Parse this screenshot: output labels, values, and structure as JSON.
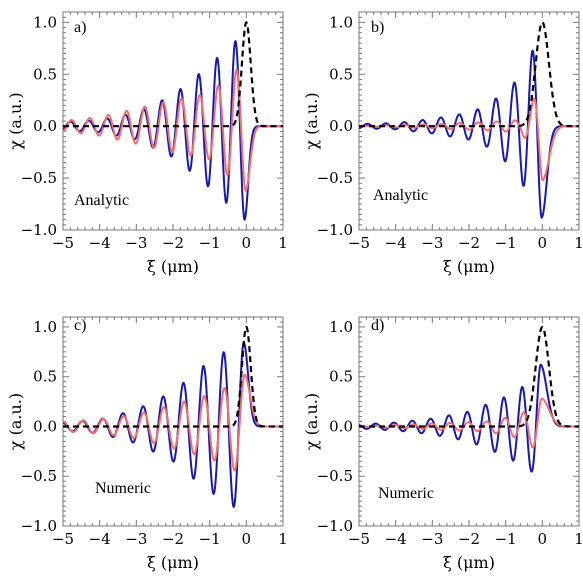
{
  "chart_data": [
    {
      "type": "line",
      "panel_label": "a)",
      "method": "Analytic",
      "xlabel": "ξ (μm)",
      "ylabel": "χ (a.u.)",
      "xlim": [
        -5,
        1
      ],
      "ylim": [
        -1,
        1.1
      ],
      "xticks": [
        "−5",
        "−4",
        "−3",
        "−2",
        "−1",
        "0",
        "1"
      ],
      "yticks": [
        "−1.0",
        "−0.5",
        "0.0",
        "0.5",
        "1.0"
      ],
      "grid": false,
      "series": [
        {
          "color": "#000000",
          "style": "dashed",
          "kind": "gaussian",
          "center": 0,
          "width": 0.12,
          "amp": 1.0
        },
        {
          "color": "#1a1aa8",
          "style": "solid",
          "kind": "oscillation",
          "wavelength": 0.5,
          "x0": -0.05,
          "amps": [
            [
              -5,
              0.04
            ],
            [
              -4,
              0.06
            ],
            [
              -3,
              0.13
            ],
            [
              -2,
              0.3
            ],
            [
              -1.3,
              0.5
            ],
            [
              -0.6,
              0.72
            ],
            [
              -0.05,
              0.9
            ]
          ],
          "tail": 0.1
        },
        {
          "color": "#f07070",
          "style": "solid",
          "kind": "oscillation",
          "wavelength": 0.5,
          "x0": -0.02,
          "amps": [
            [
              -5,
              0.05
            ],
            [
              -4,
              0.09
            ],
            [
              -3,
              0.17
            ],
            [
              -2,
              0.25
            ],
            [
              -1,
              0.32
            ],
            [
              -0.02,
              0.62
            ]
          ],
          "tail": 0.12
        }
      ]
    },
    {
      "type": "line",
      "panel_label": "b)",
      "method": "Analytic",
      "xlabel": "ξ (μm)",
      "ylabel": "χ (a.u.)",
      "xlim": [
        -5,
        1
      ],
      "ylim": [
        -1,
        1.1
      ],
      "xticks": [
        "−5",
        "−4",
        "−3",
        "−2",
        "−1",
        "0",
        "1"
      ],
      "yticks": [
        "−1.0",
        "−0.5",
        "0.0",
        "0.5",
        "1.0"
      ],
      "grid": false,
      "series": [
        {
          "color": "#000000",
          "style": "dashed",
          "kind": "gaussian",
          "center": 0,
          "width": 0.18,
          "amp": 1.0
        },
        {
          "color": "#1a1aa8",
          "style": "solid",
          "kind": "oscillation",
          "wavelength": 0.5,
          "x0": -0.02,
          "amps": [
            [
              -5,
              0.02
            ],
            [
              -4,
              0.03
            ],
            [
              -3,
              0.07
            ],
            [
              -2,
              0.13
            ],
            [
              -1.5,
              0.2
            ],
            [
              -0.8,
              0.4
            ],
            [
              -0.02,
              0.88
            ]
          ],
          "tail": 0.14
        },
        {
          "color": "#f07070",
          "style": "solid",
          "kind": "oscillation",
          "wavelength": 0.5,
          "x0": 0.0,
          "amps": [
            [
              -5,
              0.0
            ],
            [
              -3,
              0.02
            ],
            [
              -1.5,
              0.04
            ],
            [
              -0.6,
              0.06
            ],
            [
              -0.3,
              0.2
            ],
            [
              0.0,
              0.52
            ]
          ],
          "tail": 0.18
        }
      ]
    },
    {
      "type": "line",
      "panel_label": "c)",
      "method": "Numeric",
      "xlabel": "ξ (μm)",
      "ylabel": "χ (a.u.)",
      "xlim": [
        -5,
        1
      ],
      "ylim": [
        -1,
        1.1
      ],
      "xticks": [
        "−5",
        "−4",
        "−3",
        "−2",
        "−1",
        "0",
        "1"
      ],
      "yticks": [
        "−1.0",
        "−0.5",
        "0.0",
        "0.5",
        "1.0"
      ],
      "grid": false,
      "series": [
        {
          "color": "#000000",
          "style": "dashed",
          "kind": "gaussian",
          "center": 0,
          "width": 0.12,
          "amp": 1.0
        },
        {
          "color": "#1a1aa8",
          "style": "solid",
          "kind": "oscillation",
          "wavelength": 0.55,
          "x0": -0.07,
          "sign": -1,
          "amps": [
            [
              -5,
              0.04
            ],
            [
              -4,
              0.07
            ],
            [
              -3,
              0.17
            ],
            [
              -2,
              0.35
            ],
            [
              -1.2,
              0.6
            ],
            [
              -0.4,
              0.8
            ],
            [
              -0.07,
              0.84
            ]
          ],
          "tail": 0.12
        },
        {
          "color": "#f07070",
          "style": "solid",
          "kind": "oscillation",
          "wavelength": 0.55,
          "x0": -0.05,
          "sign": -1,
          "amps": [
            [
              -5,
              0.05
            ],
            [
              -4,
              0.07
            ],
            [
              -3,
              0.12
            ],
            [
              -2,
              0.22
            ],
            [
              -1,
              0.32
            ],
            [
              -0.4,
              0.42
            ],
            [
              -0.05,
              0.52
            ]
          ],
          "tail": 0.15
        }
      ]
    },
    {
      "type": "line",
      "panel_label": "d)",
      "method": "Numeric",
      "xlabel": "ξ (μm)",
      "ylabel": "χ (a.u.)",
      "xlim": [
        -5,
        1
      ],
      "ylim": [
        -1,
        1.1
      ],
      "xticks": [
        "−5",
        "−4",
        "−3",
        "−2",
        "−1",
        "0",
        "1"
      ],
      "yticks": [
        "−1.0",
        "−0.5",
        "0.0",
        "0.5",
        "1.0"
      ],
      "grid": false,
      "series": [
        {
          "color": "#000000",
          "style": "dashed",
          "kind": "gaussian",
          "center": 0,
          "width": 0.18,
          "amp": 1.0
        },
        {
          "color": "#1a1aa8",
          "style": "solid",
          "kind": "oscillation",
          "wavelength": 0.5,
          "x0": -0.05,
          "sign": -1,
          "amps": [
            [
              -5,
              0.02
            ],
            [
              -4,
              0.04
            ],
            [
              -3,
              0.08
            ],
            [
              -2,
              0.15
            ],
            [
              -1,
              0.3
            ],
            [
              -0.3,
              0.45
            ],
            [
              -0.05,
              0.62
            ]
          ],
          "tail": 0.17
        },
        {
          "color": "#f07070",
          "style": "solid",
          "kind": "oscillation",
          "wavelength": 0.5,
          "x0": -0.02,
          "sign": -1,
          "amps": [
            [
              -5,
              0.0
            ],
            [
              -3,
              0.03
            ],
            [
              -1.5,
              0.05
            ],
            [
              -0.6,
              0.12
            ],
            [
              -0.3,
              0.2
            ],
            [
              -0.02,
              0.28
            ]
          ],
          "tail": 0.2
        }
      ]
    }
  ]
}
